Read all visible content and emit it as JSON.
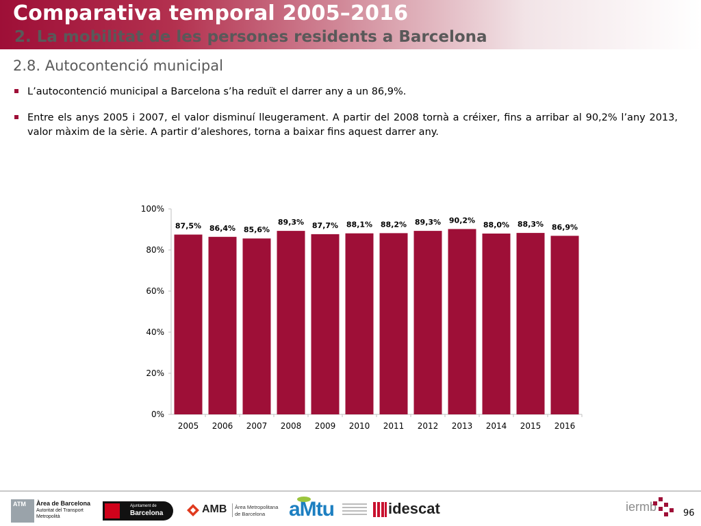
{
  "header": {
    "title": "Comparativa temporal 2005–2016",
    "subtitle": "2. La mobilitat de les persones residents a Barcelona"
  },
  "section": {
    "title": "2.8. Autocontenció municipal"
  },
  "bullets": [
    {
      "text": "L’autocontenció municipal a Barcelona s’ha reduït el darrer any a un 86,9%."
    },
    {
      "text": "Entre els anys 2005 i 2007, el valor disminuí lleugerament. A partir del 2008 tornà a créixer, fins a arribar al 90,2% l’any 2013, valor màxim de la sèrie. A partir d’aleshores, torna a baixar fins aquest darrer any."
    }
  ],
  "chart_data": {
    "type": "bar",
    "categories": [
      "2005",
      "2006",
      "2007",
      "2008",
      "2009",
      "2010",
      "2011",
      "2012",
      "2013",
      "2014",
      "2015",
      "2016"
    ],
    "values": [
      87.5,
      86.4,
      85.6,
      89.3,
      87.7,
      88.1,
      88.2,
      89.3,
      90.2,
      88.0,
      88.3,
      86.9
    ],
    "data_labels": [
      "87,5%",
      "86,4%",
      "85,6%",
      "89,3%",
      "87,7%",
      "88,1%",
      "88,2%",
      "89,3%",
      "90,2%",
      "88,0%",
      "88,3%",
      "86,9%"
    ],
    "ylim": [
      0,
      100
    ],
    "yticks": [
      0,
      20,
      40,
      60,
      80,
      100
    ],
    "ytick_labels": [
      "0%",
      "20%",
      "40%",
      "60%",
      "80%",
      "100%"
    ],
    "bar_color": "#9e0f37",
    "grid": false,
    "legend": "none"
  },
  "footer": {
    "logos": {
      "atm": {
        "badge": "ATM",
        "line1": "Àrea de Barcelona",
        "line2": "Autoritat del Transport",
        "line3": "Metropolità"
      },
      "ajuntament": {
        "line1": "Ajuntament de",
        "line2": "Barcelona"
      },
      "amb": {
        "name": "AMB",
        "line1": "Àrea Metropolitana",
        "line2": "de Barcelona"
      },
      "amtu": {
        "name": "aMtu"
      },
      "idescat": {
        "name": "idescat"
      },
      "iermb": {
        "name": "iermb"
      }
    },
    "page_number": "96"
  },
  "colors": {
    "brand": "#9e0f37",
    "subtitle": "#595959",
    "section": "#5a5a5a"
  }
}
